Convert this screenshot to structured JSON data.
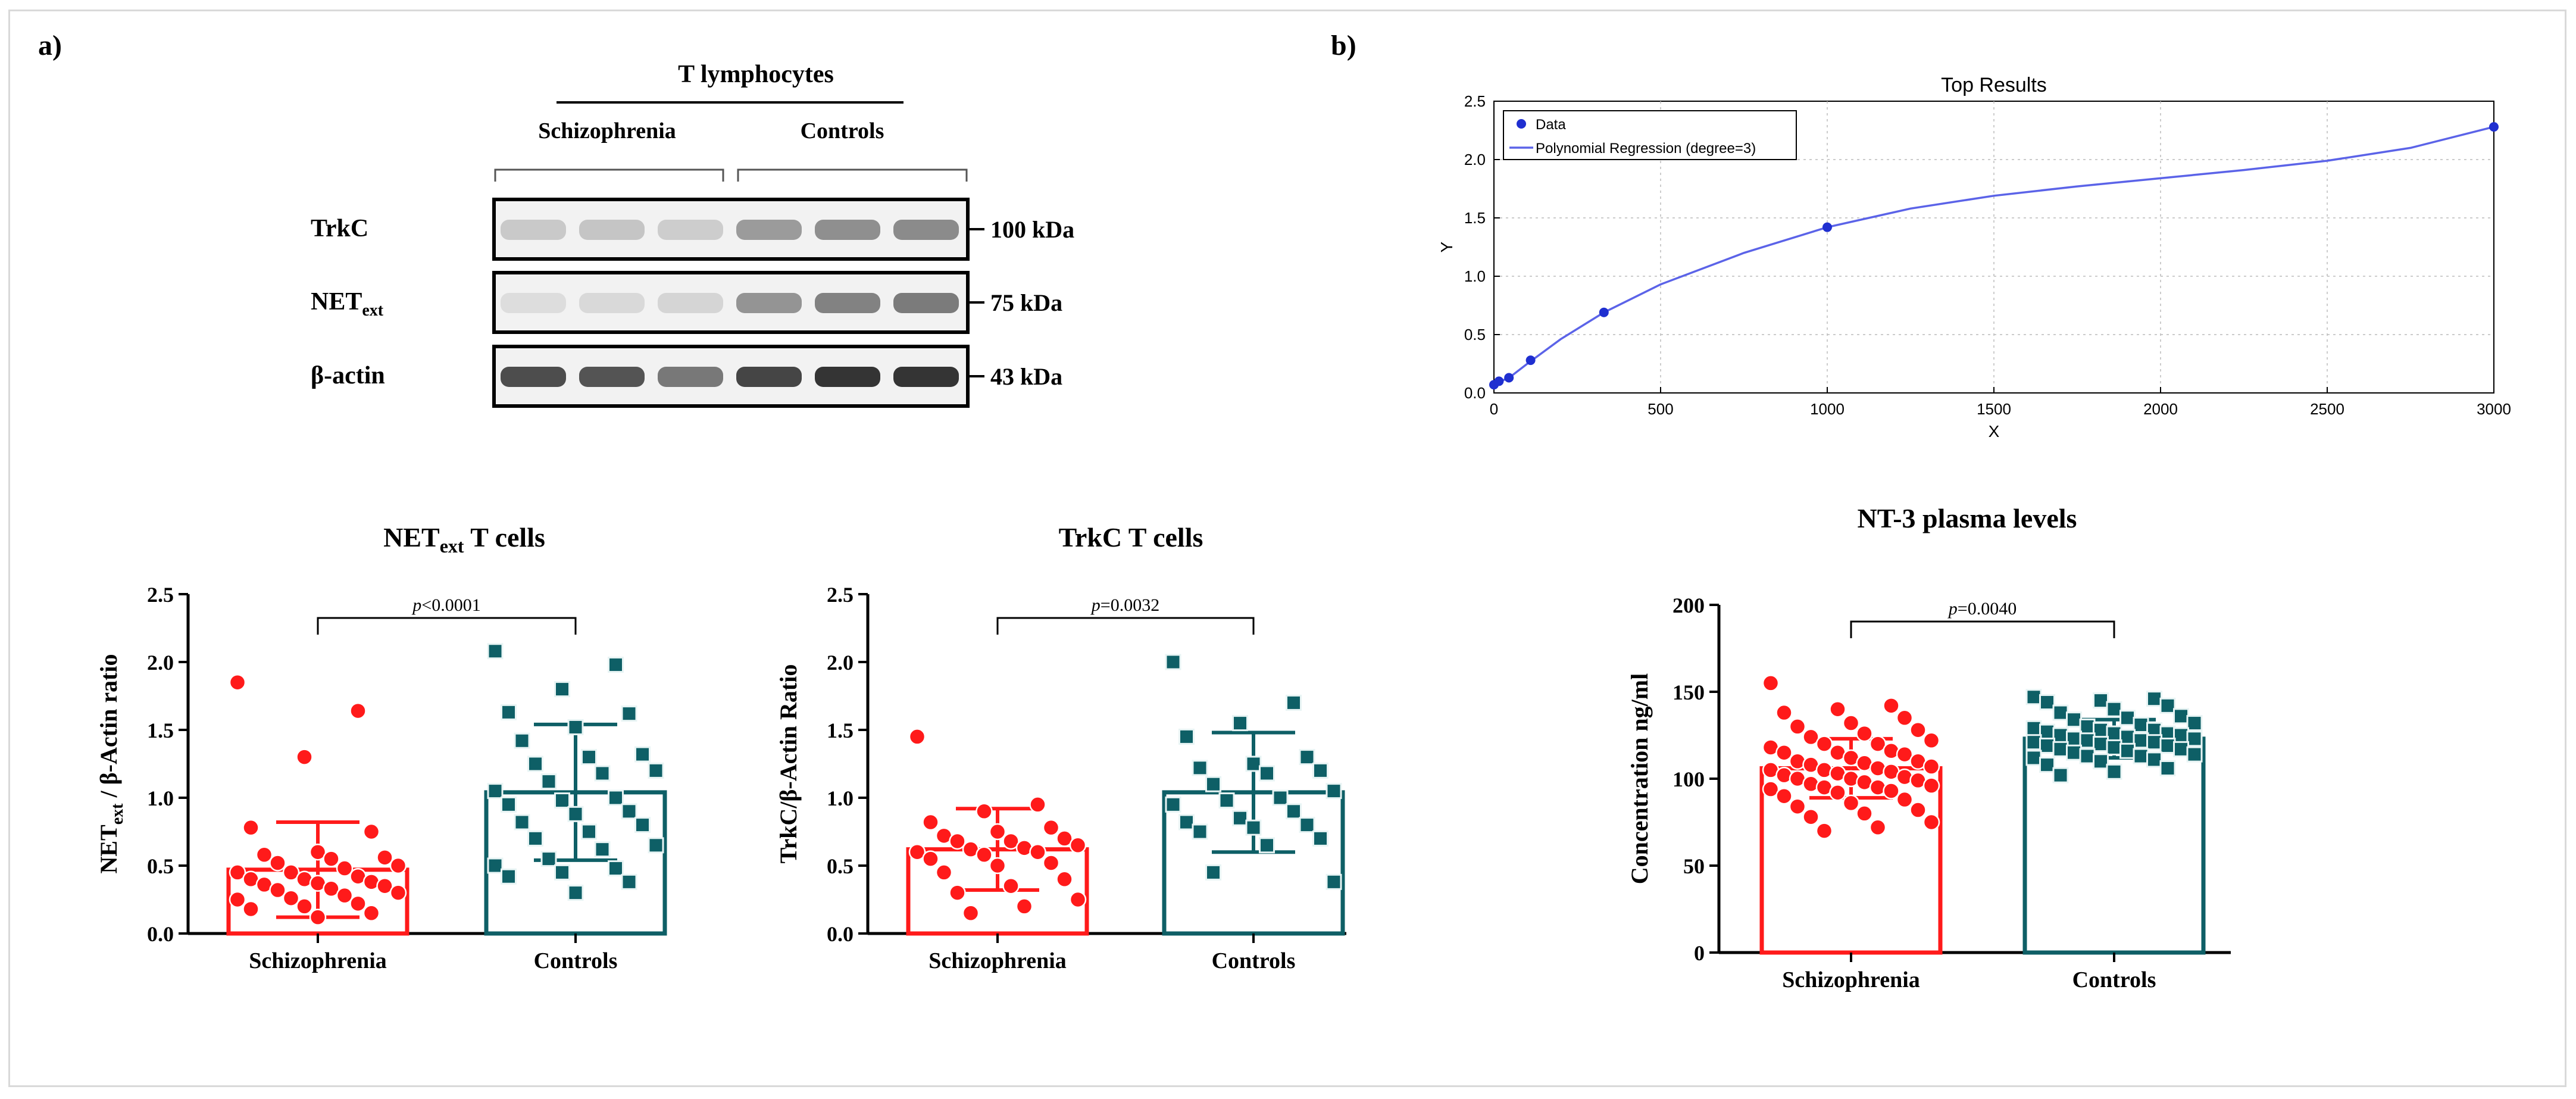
{
  "panels": {
    "a_label": "a)",
    "b_label": "b)"
  },
  "western_blot": {
    "title": "T lymphocytes",
    "groups": [
      "Schizophrenia",
      "Controls"
    ],
    "rows": [
      {
        "label": "TrkC",
        "sub": "",
        "mw": "100 kDa",
        "intensity": [
          0.18,
          0.2,
          0.16,
          0.42,
          0.48,
          0.5
        ]
      },
      {
        "label": "NET",
        "sub": "ext",
        "mw": "75 kDa",
        "intensity": [
          0.08,
          0.1,
          0.12,
          0.45,
          0.55,
          0.58
        ]
      },
      {
        "label": "β-actin",
        "sub": "",
        "mw": "43 kDa",
        "intensity": [
          0.82,
          0.78,
          0.6,
          0.86,
          0.95,
          0.95
        ]
      }
    ]
  },
  "chart_data": [
    {
      "type": "line",
      "title": "Top Results",
      "xlabel": "X",
      "ylabel": "Y",
      "xlim": [
        0,
        3000
      ],
      "ylim": [
        0,
        2.5
      ],
      "xticks": [
        "0",
        "500",
        "1000",
        "1500",
        "2000",
        "2500",
        "3000"
      ],
      "yticks": [
        "0.0",
        "0.5",
        "1.0",
        "1.5",
        "2.0",
        "2.5"
      ],
      "grid": true,
      "legend": [
        "Data",
        "Polynomial Regression (degree=3)"
      ],
      "series": [
        {
          "name": "Data",
          "x": [
            0,
            15,
            45,
            110,
            330,
            1000,
            3000
          ],
          "y": [
            0.07,
            0.1,
            0.13,
            0.28,
            0.69,
            1.42,
            2.28
          ]
        },
        {
          "name": "Polynomial Regression (degree=3)",
          "x": [
            0,
            50,
            100,
            200,
            330,
            500,
            750,
            1000,
            1250,
            1500,
            1750,
            2000,
            2250,
            2500,
            2750,
            3000
          ],
          "y": [
            0.07,
            0.14,
            0.25,
            0.46,
            0.69,
            0.93,
            1.2,
            1.42,
            1.58,
            1.69,
            1.77,
            1.84,
            1.91,
            1.99,
            2.1,
            2.28
          ]
        }
      ]
    },
    {
      "type": "bar",
      "title_main": "NET",
      "title_sub": "ext",
      "title_rest": " T cells",
      "ylabel_main": "NET",
      "ylabel_sub": "ext",
      "ylabel_rest": " / β-Actin ratio",
      "categories": [
        "Schizophrenia",
        "Controls"
      ],
      "means": [
        0.47,
        1.04
      ],
      "sd": [
        0.35,
        0.5
      ],
      "ylim": [
        0,
        2.5
      ],
      "yticks": [
        "0.0",
        "0.5",
        "1.0",
        "1.5",
        "2.0",
        "2.5"
      ],
      "p_text": "<0.0001",
      "points": [
        [
          1.85,
          1.64,
          1.3,
          0.78,
          0.75,
          0.6,
          0.58,
          0.56,
          0.52,
          0.5,
          0.48,
          0.45,
          0.42,
          0.4,
          0.38,
          0.37,
          0.35,
          0.33,
          0.3,
          0.28,
          0.26,
          0.22,
          0.2,
          0.18,
          0.15,
          0.12,
          0.4,
          0.32,
          0.55,
          0.25,
          0.45,
          0.36
        ],
        [
          2.08,
          1.98,
          1.8,
          1.63,
          1.62,
          1.52,
          1.42,
          1.32,
          1.3,
          1.25,
          1.2,
          1.12,
          1.05,
          1.0,
          0.98,
          0.95,
          0.9,
          0.82,
          0.8,
          0.75,
          0.7,
          0.62,
          0.55,
          0.5,
          0.48,
          0.45,
          0.42,
          0.38,
          0.3,
          1.18,
          0.65,
          0.88
        ]
      ]
    },
    {
      "type": "bar",
      "title_main": "TrkC T cells",
      "title_sub": "",
      "title_rest": "",
      "ylabel_main": "TrkC/β-Actin Ratio",
      "ylabel_sub": "",
      "ylabel_rest": "",
      "categories": [
        "Schizophrenia",
        "Controls"
      ],
      "means": [
        0.62,
        1.04
      ],
      "sd": [
        0.3,
        0.44
      ],
      "ylim": [
        0,
        2.5
      ],
      "yticks": [
        "0.0",
        "0.5",
        "1.0",
        "1.5",
        "2.0",
        "2.5"
      ],
      "p_text": "=0.0032",
      "points": [
        [
          1.45,
          0.95,
          0.9,
          0.82,
          0.78,
          0.75,
          0.72,
          0.68,
          0.65,
          0.63,
          0.62,
          0.6,
          0.58,
          0.55,
          0.5,
          0.45,
          0.4,
          0.35,
          0.3,
          0.25,
          0.2,
          0.15,
          0.68,
          0.52,
          0.7,
          0.6
        ],
        [
          2.0,
          1.7,
          1.55,
          1.45,
          1.3,
          1.25,
          1.22,
          1.2,
          1.18,
          1.05,
          1.0,
          0.98,
          0.95,
          0.85,
          0.82,
          0.8,
          0.78,
          0.75,
          0.7,
          0.65,
          0.45,
          0.38,
          1.1,
          0.9
        ]
      ]
    },
    {
      "type": "bar",
      "title_main": "NT-3 plasma levels",
      "title_sub": "",
      "title_rest": "",
      "ylabel_main": "Concentration ng/ml",
      "ylabel_sub": "",
      "ylabel_rest": "",
      "categories": [
        "Schizophrenia",
        "Controls"
      ],
      "means": [
        106,
        123
      ],
      "sd": [
        17,
        11
      ],
      "ylim": [
        0,
        200
      ],
      "yticks": [
        "0",
        "50",
        "100",
        "150",
        "200"
      ],
      "p_text": "=0.0040",
      "points": [
        [
          155,
          142,
          140,
          138,
          135,
          132,
          130,
          128,
          126,
          124,
          122,
          120,
          118,
          116,
          115,
          114,
          112,
          110,
          109,
          108,
          107,
          106,
          105,
          104,
          103,
          102,
          101,
          100,
          99,
          98,
          97,
          96,
          95,
          94,
          93,
          92,
          90,
          88,
          86,
          84,
          82,
          80,
          78,
          75,
          72,
          70,
          110,
          100,
          105,
          115,
          95,
          120
        ],
        [
          147,
          146,
          145,
          144,
          142,
          140,
          138,
          136,
          135,
          134,
          132,
          130,
          129,
          128,
          127,
          126,
          125,
          124,
          123,
          122,
          121,
          120,
          119,
          118,
          117,
          116,
          115,
          114,
          113,
          112,
          111,
          110,
          108,
          106,
          104,
          102,
          125,
          123,
          121,
          119,
          128,
          126,
          131,
          117,
          113,
          122
        ]
      ]
    }
  ]
}
